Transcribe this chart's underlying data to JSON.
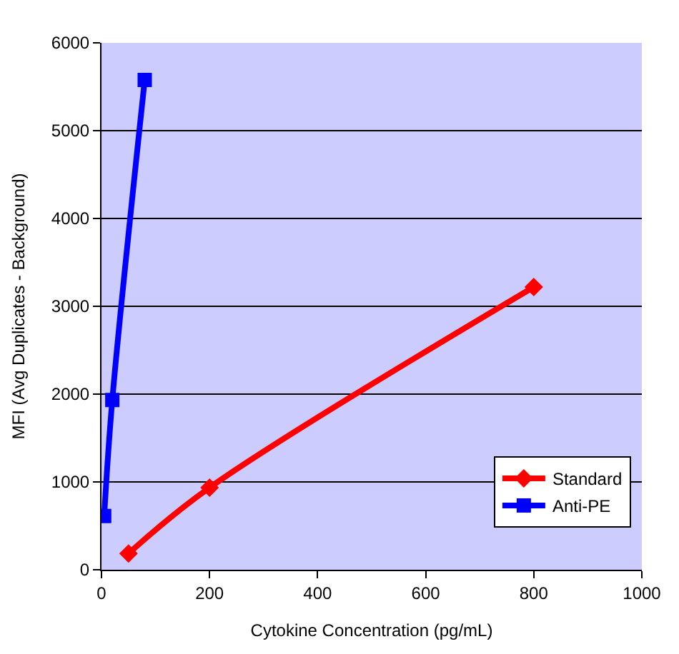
{
  "chart_data": {
    "type": "line",
    "xlabel": "Cytokine Concentration (pg/mL)",
    "ylabel": "MFI (Avg Duplicates - Background)",
    "xlim": [
      0,
      1000
    ],
    "xticks": [
      0,
      200,
      400,
      600,
      800,
      1000
    ],
    "ylim": [
      0,
      6000
    ],
    "yticks": [
      0,
      1000,
      2000,
      3000,
      4000,
      5000,
      6000
    ],
    "grid": "y",
    "legend": "bottom right",
    "series": [
      {
        "name": "Standard",
        "color": "#ff0000",
        "marker": "diamond",
        "x": [
          50,
          200,
          800
        ],
        "values": [
          185,
          935,
          3220
        ]
      },
      {
        "name": "Anti-PE",
        "color": "#0000ff",
        "marker": "square",
        "x": [
          5,
          20,
          80
        ],
        "values": [
          612,
          1933,
          5577
        ]
      }
    ]
  }
}
